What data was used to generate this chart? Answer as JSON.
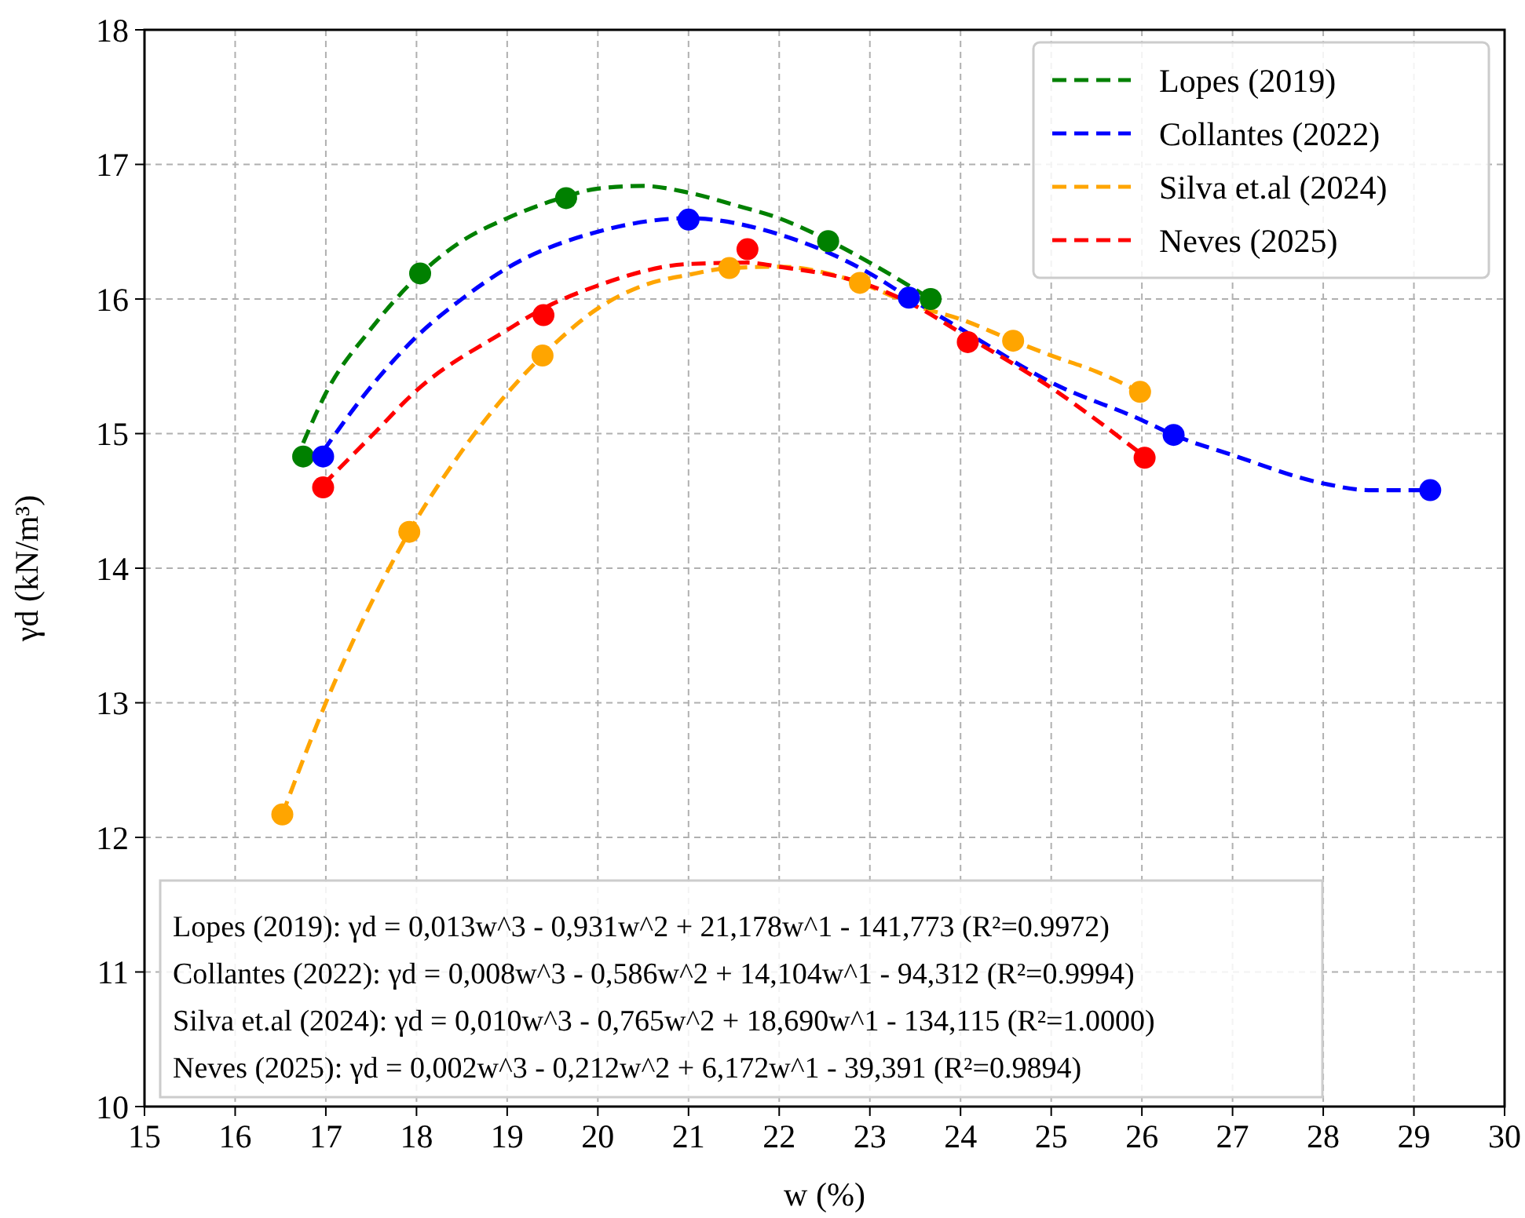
{
  "chart_data": {
    "type": "scatter",
    "xlabel": "w (%)",
    "ylabel": "γd (kN/m³)",
    "xlim": [
      15,
      30
    ],
    "ylim": [
      10,
      18
    ],
    "xticks": [
      15,
      16,
      17,
      18,
      19,
      20,
      21,
      22,
      23,
      24,
      25,
      26,
      27,
      28,
      29,
      30
    ],
    "yticks": [
      10,
      11,
      12,
      13,
      14,
      15,
      16,
      17,
      18
    ],
    "grid": true,
    "legend": "top right",
    "marker": "circle",
    "series": [
      {
        "type": "line",
        "name": "Lopes (2019)",
        "color": "#008000",
        "line_style": "dashed",
        "marker": "none",
        "x": [
          16.75,
          17,
          17.5,
          18,
          18.5,
          19,
          19.5,
          20,
          20.5,
          21,
          21.5,
          22,
          22.5,
          23,
          23.67
        ],
        "values": [
          14.93,
          15.3,
          15.78,
          16.16,
          16.43,
          16.6,
          16.73,
          16.82,
          16.84,
          16.79,
          16.7,
          16.6,
          16.45,
          16.27,
          16.0
        ]
      },
      {
        "type": "line",
        "name": "Collantes (2022)",
        "color": "#0000ff",
        "line_style": "dashed",
        "marker": "none",
        "x": [
          16.97,
          17.5,
          18,
          18.5,
          19,
          20,
          21,
          22,
          23,
          23.43,
          24,
          25,
          26,
          26.35,
          27,
          28,
          28.5,
          29.18
        ],
        "values": [
          14.87,
          15.35,
          15.72,
          16.0,
          16.23,
          16.5,
          16.6,
          16.48,
          16.19,
          16.01,
          15.78,
          15.38,
          15.1,
          14.99,
          14.84,
          14.63,
          14.58,
          14.58
        ]
      },
      {
        "type": "line",
        "name": "Silva et.al (2024)",
        "color": "#ffa500",
        "line_style": "dashed",
        "marker": "none",
        "x": [
          16.52,
          17,
          17.92,
          18.5,
          19.39,
          20,
          20.5,
          21,
          21.45,
          22,
          22.89,
          23.5,
          24,
          24.58,
          25,
          25.5,
          25.98
        ],
        "values": [
          12.17,
          13.0,
          14.27,
          14.87,
          15.58,
          15.93,
          16.1,
          16.18,
          16.23,
          16.24,
          16.12,
          15.95,
          15.85,
          15.69,
          15.58,
          15.46,
          15.31
        ]
      },
      {
        "type": "line",
        "name": "Neves (2025)",
        "color": "#ff0000",
        "line_style": "dashed",
        "marker": "none",
        "x": [
          16.97,
          17.5,
          18,
          19,
          19.4,
          20,
          21,
          21.65,
          22,
          23,
          23.5,
          24,
          25,
          26.03
        ],
        "values": [
          14.62,
          14.98,
          15.32,
          15.77,
          15.93,
          16.1,
          16.26,
          16.27,
          16.24,
          16.1,
          15.95,
          15.75,
          15.34,
          14.83
        ]
      },
      {
        "color": "#008000",
        "x": [
          16.75,
          18.04,
          19.65,
          22.54,
          23.67
        ],
        "values": [
          14.83,
          16.19,
          16.75,
          16.43,
          16.0
        ]
      },
      {
        "color": "#0000ff",
        "x": [
          16.97,
          21.0,
          23.43,
          26.35,
          29.18
        ],
        "values": [
          14.83,
          16.59,
          16.01,
          14.99,
          14.58
        ]
      },
      {
        "color": "#ffa500",
        "x": [
          16.52,
          17.92,
          19.39,
          21.45,
          22.89,
          24.58,
          25.98
        ],
        "values": [
          12.17,
          14.27,
          15.58,
          16.23,
          16.12,
          15.69,
          15.31
        ]
      },
      {
        "color": "#ff0000",
        "x": [
          16.97,
          19.4,
          21.65,
          24.08,
          26.03
        ],
        "values": [
          14.6,
          15.88,
          16.37,
          15.68,
          14.82
        ]
      }
    ],
    "annotations": [
      "Lopes (2019): γd = 0,013w^3 - 0,931w^2 + 21,178w^1 - 141,773 (R²=0.9972)",
      "Collantes (2022): γd = 0,008w^3 - 0,586w^2 + 14,104w^1 - 94,312 (R²=0.9994)",
      "Silva et.al (2024): γd = 0,010w^3 - 0,765w^2 + 18,690w^1 - 134,115 (R²=1.0000)",
      "Neves (2025): γd = 0,002w^3 - 0,212w^2 + 6,172w^1 - 39,391 (R²=0.9894)"
    ]
  }
}
